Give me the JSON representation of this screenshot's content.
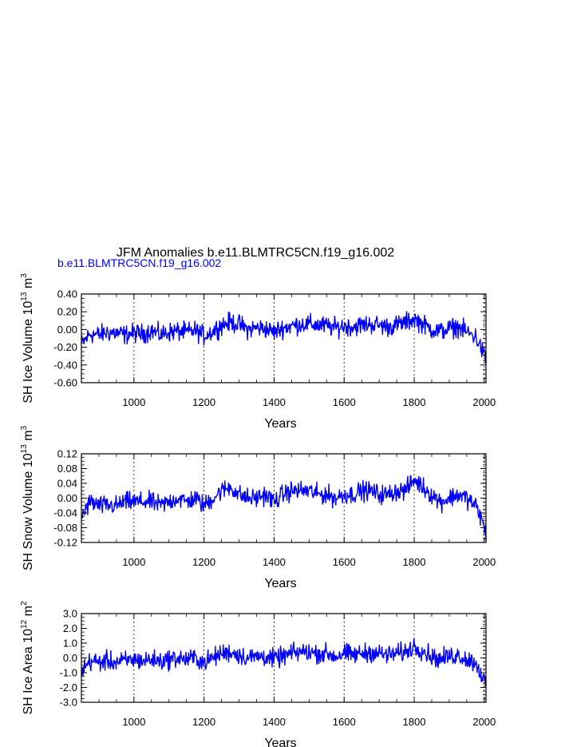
{
  "title": "JFM Anomalies b.e11.BLMTRC5CN.f19_g16.002",
  "series_label": "b.e11.BLMTRC5CN.f19_g16.002",
  "series_color": "#0000ff",
  "chart_data": [
    {
      "type": "line",
      "ylabel": "SH Ice Volume 10",
      "ylabel_sup": "13",
      "ylabel_unit": " m",
      "ylabel_unit_sup": "3",
      "xlabel": "Years",
      "xlim": [
        850,
        2005
      ],
      "ylim": [
        -0.6,
        0.4
      ],
      "yticks": [
        -0.6,
        -0.4,
        -0.2,
        0.0,
        0.2,
        0.4
      ],
      "ytick_labels": [
        "-0.60",
        "-0.40",
        "-0.20",
        "0.00",
        "0.20",
        "0.40"
      ],
      "xticks": [
        1000,
        1200,
        1400,
        1600,
        1800,
        2000
      ],
      "xtick_labels": [
        "1000",
        "1200",
        "1400",
        "1600",
        "1800",
        "2000"
      ],
      "grid_x": [
        1000,
        1200,
        1400,
        1600,
        1800,
        2000
      ],
      "x": [
        850,
        875,
        900,
        925,
        950,
        975,
        1000,
        1025,
        1050,
        1075,
        1100,
        1125,
        1150,
        1175,
        1200,
        1225,
        1250,
        1275,
        1300,
        1325,
        1350,
        1375,
        1400,
        1425,
        1450,
        1475,
        1500,
        1525,
        1550,
        1575,
        1600,
        1625,
        1650,
        1675,
        1700,
        1725,
        1750,
        1775,
        1800,
        1825,
        1850,
        1875,
        1900,
        1925,
        1950,
        1975,
        1990,
        2005
      ],
      "y": [
        -0.17,
        -0.05,
        -0.06,
        -0.03,
        -0.04,
        -0.06,
        -0.04,
        -0.05,
        -0.01,
        -0.06,
        -0.03,
        -0.02,
        -0.03,
        -0.01,
        -0.07,
        -0.02,
        0.05,
        0.08,
        0.06,
        0.0,
        0.02,
        0.01,
        -0.03,
        0.02,
        0.04,
        0.06,
        0.06,
        0.05,
        0.04,
        0.02,
        0.04,
        0.03,
        0.05,
        0.06,
        0.05,
        0.03,
        0.05,
        0.08,
        0.12,
        0.06,
        0.0,
        -0.02,
        0.01,
        0.03,
        -0.03,
        -0.08,
        -0.2,
        -0.35
      ]
    },
    {
      "type": "line",
      "ylabel": "SH Snow Volume 10",
      "ylabel_sup": "13",
      "ylabel_unit": " m",
      "ylabel_unit_sup": "3",
      "xlabel": "Years",
      "xlim": [
        850,
        2005
      ],
      "ylim": [
        -0.12,
        0.12
      ],
      "yticks": [
        -0.12,
        -0.08,
        -0.04,
        0.0,
        0.04,
        0.08,
        0.12
      ],
      "ytick_labels": [
        "-0.12",
        "-0.08",
        "-0.04",
        "0.00",
        "0.04",
        "0.08",
        "0.12"
      ],
      "xticks": [
        1000,
        1200,
        1400,
        1600,
        1800,
        2000
      ],
      "xtick_labels": [
        "1000",
        "1200",
        "1400",
        "1600",
        "1800",
        "2000"
      ],
      "grid_x": [
        1000,
        1200,
        1400,
        1600,
        1800,
        2000
      ],
      "x": [
        850,
        875,
        900,
        925,
        950,
        975,
        1000,
        1025,
        1050,
        1075,
        1100,
        1125,
        1150,
        1175,
        1200,
        1225,
        1250,
        1275,
        1300,
        1325,
        1350,
        1375,
        1400,
        1425,
        1450,
        1475,
        1500,
        1525,
        1550,
        1575,
        1600,
        1625,
        1650,
        1675,
        1700,
        1725,
        1750,
        1775,
        1800,
        1825,
        1850,
        1875,
        1900,
        1925,
        1950,
        1975,
        1990,
        2005
      ],
      "y": [
        -0.05,
        -0.01,
        -0.02,
        -0.02,
        -0.02,
        -0.01,
        -0.01,
        -0.01,
        -0.01,
        -0.02,
        -0.01,
        0.0,
        -0.01,
        0.0,
        -0.02,
        0.0,
        0.02,
        0.03,
        0.01,
        0.0,
        0.0,
        0.01,
        -0.01,
        0.01,
        0.02,
        0.02,
        0.02,
        0.01,
        0.01,
        0.0,
        0.01,
        0.01,
        0.02,
        0.02,
        0.01,
        0.01,
        0.02,
        0.02,
        0.05,
        0.03,
        0.01,
        -0.01,
        0.0,
        0.01,
        0.0,
        -0.02,
        -0.05,
        -0.1
      ]
    },
    {
      "type": "line",
      "ylabel": "SH Ice Area 10",
      "ylabel_sup": "12",
      "ylabel_unit": " m",
      "ylabel_unit_sup": "2",
      "xlabel": "Years",
      "xlim": [
        850,
        2005
      ],
      "ylim": [
        -3.0,
        3.0
      ],
      "yticks": [
        -3.0,
        -2.0,
        -1.0,
        0.0,
        1.0,
        2.0,
        3.0
      ],
      "ytick_labels": [
        "-3.0",
        "-2.0",
        "-1.0",
        "0.0",
        "1.0",
        "2.0",
        "3.0"
      ],
      "xticks": [
        1000,
        1200,
        1400,
        1600,
        1800,
        2000
      ],
      "xtick_labels": [
        "1000",
        "1200",
        "1400",
        "1600",
        "1800",
        "2000"
      ],
      "grid_x": [
        1000,
        1200,
        1400,
        1600,
        1800,
        2000
      ],
      "x": [
        850,
        875,
        900,
        925,
        950,
        975,
        1000,
        1025,
        1050,
        1075,
        1100,
        1125,
        1150,
        1175,
        1200,
        1225,
        1250,
        1275,
        1300,
        1325,
        1350,
        1375,
        1400,
        1425,
        1450,
        1475,
        1500,
        1525,
        1550,
        1575,
        1600,
        1625,
        1650,
        1675,
        1700,
        1725,
        1750,
        1775,
        1800,
        1825,
        1850,
        1875,
        1900,
        1925,
        1950,
        1975,
        1990,
        2005
      ],
      "y": [
        -0.9,
        -0.2,
        -0.3,
        -0.2,
        -0.3,
        -0.2,
        -0.1,
        -0.2,
        -0.1,
        -0.2,
        -0.1,
        0.0,
        -0.1,
        0.0,
        -0.3,
        0.0,
        0.3,
        0.4,
        0.2,
        0.0,
        0.1,
        0.1,
        -0.1,
        0.1,
        0.3,
        0.4,
        0.4,
        0.3,
        0.3,
        0.1,
        0.3,
        0.2,
        0.3,
        0.4,
        0.3,
        0.2,
        0.3,
        0.4,
        0.8,
        0.5,
        0.1,
        -0.1,
        0.1,
        0.2,
        -0.1,
        -0.3,
        -1.0,
        -1.9
      ]
    }
  ]
}
